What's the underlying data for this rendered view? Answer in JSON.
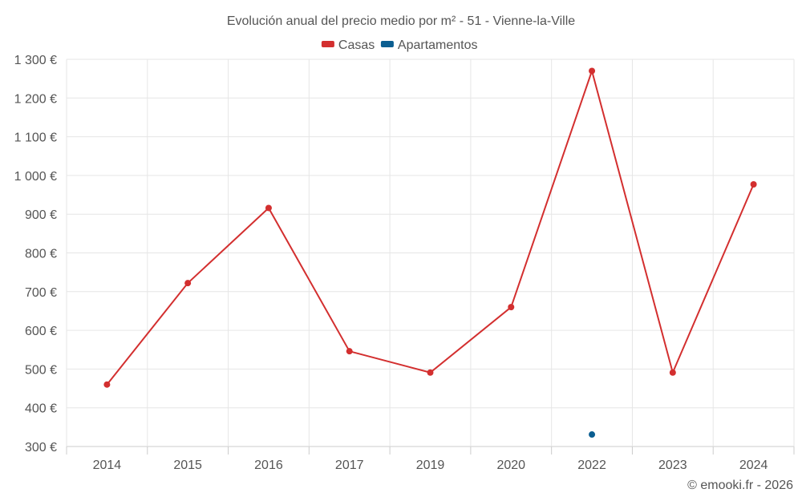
{
  "chart_data": {
    "type": "line",
    "title": "Evolución anual del precio medio por m² - 51 - Vienne-la-Ville",
    "categories": [
      "2014",
      "2015",
      "2016",
      "2017",
      "2019",
      "2020",
      "2022",
      "2023",
      "2024"
    ],
    "series": [
      {
        "name": "Casas",
        "color": "#d32f2f",
        "values": [
          460,
          722,
          916,
          546,
          491,
          660,
          1270,
          491,
          977
        ]
      },
      {
        "name": "Apartamentos",
        "color": "#0b5e91",
        "values": [
          null,
          null,
          null,
          null,
          null,
          null,
          331,
          null,
          null
        ]
      }
    ],
    "ylim": [
      300,
      1300
    ],
    "yticks": [
      300,
      400,
      500,
      600,
      700,
      800,
      900,
      1000,
      1100,
      1200,
      1300
    ],
    "ytick_labels": [
      "300 €",
      "400 €",
      "500 €",
      "600 €",
      "700 €",
      "800 €",
      "900 €",
      "1 000 €",
      "1 100 €",
      "1 200 €",
      "1 300 €"
    ],
    "xlabel": "",
    "ylabel": "",
    "grid": true,
    "legend_position": "top-center"
  },
  "credit": "© emooki.fr - 2026"
}
